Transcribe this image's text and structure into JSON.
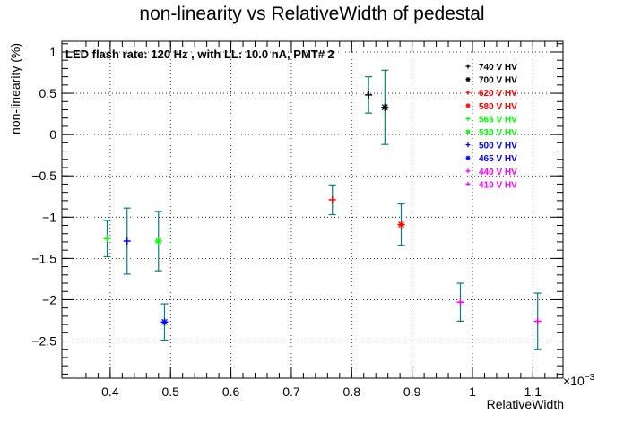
{
  "chart_data": {
    "type": "scatter",
    "title": "non-linearity vs RelativeWidth of pedestal",
    "xlabel": "RelativeWidth",
    "ylabel": "non-linearity (%)",
    "x_multiplier_label": "×10",
    "x_multiplier_exp": "−3",
    "annotation": "LED flash rate: 120 Hz , with LL: 10.0 nA, PMT# 2",
    "xlim": [
      0.32,
      1.15
    ],
    "ylim": [
      -2.95,
      1.13
    ],
    "x_ticks": [
      0.4,
      0.5,
      0.6,
      0.7,
      0.8,
      0.9,
      1.0,
      1.1
    ],
    "x_tick_labels": [
      "0.4",
      "0.5",
      "0.6",
      "0.7",
      "0.8",
      "0.9",
      "1",
      "1.1"
    ],
    "y_ticks": [
      -2.5,
      -2,
      -1.5,
      -1,
      -0.5,
      0,
      0.5,
      1
    ],
    "y_tick_labels": [
      "−2.5",
      "−2",
      "−1.5",
      "−1",
      "−0.5",
      "0",
      "0.5",
      "1"
    ],
    "grid": true,
    "legend_position": "top-right",
    "series": [
      {
        "name": "740 V HV",
        "color": "#000000",
        "marker": "plus",
        "points": [
          {
            "x": 0.828,
            "y": 0.48,
            "err": 0.22
          }
        ]
      },
      {
        "name": "700 V HV",
        "color": "#000000",
        "marker": "star",
        "points": [
          {
            "x": 0.855,
            "y": 0.33,
            "err": 0.45
          }
        ]
      },
      {
        "name": "620 V HV",
        "color": "#ff0000",
        "marker": "plus",
        "points": [
          {
            "x": 0.768,
            "y": -0.79,
            "err": 0.18
          }
        ]
      },
      {
        "name": "580 V HV",
        "color": "#ff0000",
        "marker": "star",
        "points": [
          {
            "x": 0.882,
            "y": -1.09,
            "err": 0.25
          }
        ]
      },
      {
        "name": "565 V HV",
        "color": "#00ff00",
        "marker": "plus",
        "points": [
          {
            "x": 0.395,
            "y": -1.26,
            "err": 0.22
          }
        ]
      },
      {
        "name": "530 V HV",
        "color": "#00ff00",
        "marker": "star",
        "points": [
          {
            "x": 0.48,
            "y": -1.29,
            "err": 0.36
          }
        ]
      },
      {
        "name": "500 V HV",
        "color": "#0000ff",
        "marker": "plus",
        "points": [
          {
            "x": 0.428,
            "y": -1.29,
            "err": 0.4
          }
        ]
      },
      {
        "name": "465 V HV",
        "color": "#0000ff",
        "marker": "star",
        "points": [
          {
            "x": 0.49,
            "y": -2.27,
            "err": 0.22
          }
        ]
      },
      {
        "name": "440 V HV",
        "color": "#ff00ff",
        "marker": "plus",
        "points": [
          {
            "x": 0.98,
            "y": -2.03,
            "err": 0.23
          }
        ]
      },
      {
        "name": "410 V HV",
        "color": "#ff00ff",
        "marker": "plus",
        "points": [
          {
            "x": 1.108,
            "y": -2.26,
            "err": 0.34
          }
        ]
      }
    ],
    "error_bar_color": "#008080"
  }
}
